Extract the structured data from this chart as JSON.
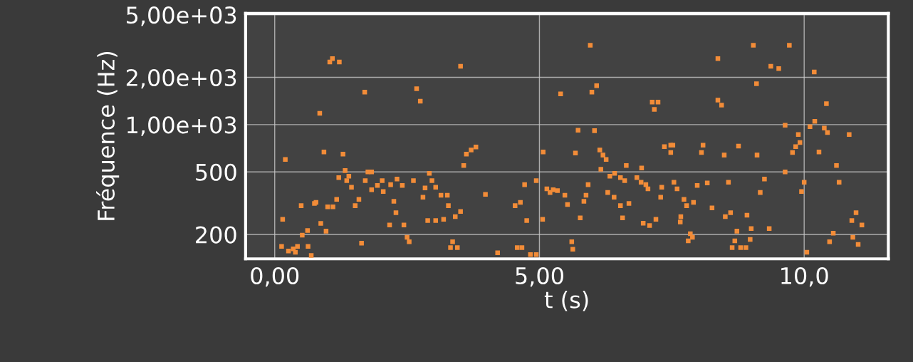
{
  "chart_data": {
    "type": "scatter",
    "xlabel": "t (s)",
    "ylabel": "Fréquence (Hz)",
    "xlim": [
      -0.55,
      11.59
    ],
    "ylim": [
      140,
      5100
    ],
    "log": "y",
    "grid": true,
    "marker": "square",
    "legend": false,
    "xticks": [
      {
        "value": 0,
        "label": "0,00"
      },
      {
        "value": 5,
        "label": "5,00"
      },
      {
        "value": 10,
        "label": "10,0"
      }
    ],
    "yticks": [
      {
        "value": 200,
        "label": "200"
      },
      {
        "value": 500,
        "label": "500"
      },
      {
        "value": 1000,
        "label": "1,00e+03"
      },
      {
        "value": 2000,
        "label": "2,00e+03"
      },
      {
        "value": 5000,
        "label": "5,00e+03"
      }
    ],
    "series": [
      {
        "color": "#f28c38",
        "x": [
          0.2,
          0.93,
          1.29,
          1.33,
          1.21,
          1.4,
          1.36,
          1.45,
          1.76,
          1.83,
          1.71,
          2.03,
          1.94,
          1.83,
          2.05,
          2.19,
          2.31,
          2.41,
          2.62,
          2.92,
          2.97,
          2.84,
          3.04,
          3.14,
          3.26,
          2.8,
          3.28,
          3.51,
          3.41,
          3.19,
          3.04,
          2.89,
          2.25,
          2.29,
          2.17,
          2.44,
          2.5,
          2.54,
          3.36,
          3.32,
          3.45,
          1.59,
          1.52,
          1.17,
          1.1,
          1.0,
          0.75,
          0.78,
          0.5,
          0.15,
          0.87,
          0.97,
          0.62,
          0.52,
          1.64,
          0.13,
          0.26,
          0.35,
          0.43,
          0.39,
          0.63,
          0.69,
          1.09,
          1.04,
          1.22,
          1.7,
          2.68,
          2.75,
          0.85,
          3.51,
          3.62,
          3.71,
          3.8,
          3.57,
          3.98,
          4.72,
          4.94,
          4.54,
          4.64,
          4.76,
          5.06,
          5.07,
          5.68,
          6.14,
          6.2,
          6.26,
          6.16,
          6.64,
          6.93,
          5.14,
          5.26,
          5.34,
          5.2,
          5.48,
          5.53,
          5.92,
          5.88,
          5.84,
          5.77,
          6.33,
          6.42,
          6.53,
          6.61,
          6.84,
          6.92,
          7.01,
          7.05,
          6.29,
          6.41,
          6.53,
          6.69,
          6.57,
          6.96,
          7.08,
          7.2,
          7.31,
          7.29,
          7.36,
          7.48,
          7.48,
          5.61,
          5.63,
          4.21,
          4.58,
          4.67,
          4.83,
          4.94,
          5.96,
          5.4,
          6.08,
          5.99,
          7.13,
          7.24,
          7.17,
          5.73,
          6.04,
          8.37,
          9.04,
          9.72,
          9.37,
          9.52,
          10.19,
          9.1,
          8.37,
          8.44,
          10.42,
          9.64,
          10.2,
          10.11,
          10.38,
          10.44,
          10.85,
          9.89,
          7.52,
          8.09,
          8.06,
          8.49,
          8.76,
          9.11,
          9.78,
          9.84,
          9.92,
          10.28,
          10.61,
          9.64,
          7.54,
          7.6,
          7.98,
          8.17,
          8.57,
          9.25,
          9.17,
          10.0,
          9.95,
          10.66,
          7.73,
          7.78,
          7.91,
          8.26,
          7.67,
          7.66,
          8.51,
          8.61,
          8.92,
          9.0,
          9.34,
          8.73,
          8.69,
          8.98,
          8.64,
          8.8,
          8.9,
          7.85,
          7.89,
          7.81,
          10.98,
          10.9,
          11.09,
          10.55,
          10.48,
          10.92,
          11.02,
          10.05
        ],
        "values": [
          600,
          670,
          650,
          510,
          460,
          470,
          440,
          400,
          500,
          500,
          440,
          440,
          410,
          385,
          375,
          415,
          450,
          410,
          440,
          490,
          440,
          395,
          400,
          355,
          355,
          345,
          305,
          280,
          260,
          250,
          245,
          245,
          325,
          275,
          230,
          230,
          192,
          180,
          180,
          165,
          165,
          335,
          305,
          335,
          300,
          300,
          315,
          320,
          305,
          250,
          235,
          210,
          212,
          198,
          176,
          168,
          157,
          162,
          168,
          154,
          168,
          147,
          2630,
          2500,
          2500,
          1610,
          1690,
          1410,
          1180,
          2350,
          650,
          690,
          720,
          550,
          360,
          415,
          440,
          305,
          320,
          245,
          250,
          670,
          660,
          690,
          640,
          600,
          520,
          550,
          530,
          390,
          385,
          380,
          370,
          355,
          310,
          415,
          355,
          325,
          255,
          470,
          490,
          460,
          440,
          460,
          430,
          415,
          390,
          370,
          345,
          305,
          315,
          255,
          236,
          228,
          250,
          400,
          345,
          725,
          740,
          665,
          180,
          161,
          153,
          165,
          165,
          149,
          149,
          3200,
          1570,
          1770,
          1610,
          1390,
          1390,
          1250,
          920,
          915,
          2630,
          3200,
          3200,
          2350,
          2270,
          2160,
          1820,
          1430,
          1330,
          1360,
          990,
          1050,
          970,
          950,
          890,
          865,
          865,
          740,
          740,
          665,
          640,
          730,
          640,
          665,
          725,
          770,
          670,
          550,
          500,
          430,
          390,
          410,
          425,
          430,
          450,
          370,
          430,
          375,
          430,
          335,
          305,
          320,
          295,
          260,
          240,
          260,
          275,
          265,
          218,
          218,
          210,
          182,
          186,
          165,
          165,
          165,
          202,
          192,
          182,
          275,
          245,
          230,
          204,
          180,
          192,
          173,
          154
        ]
      }
    ]
  }
}
